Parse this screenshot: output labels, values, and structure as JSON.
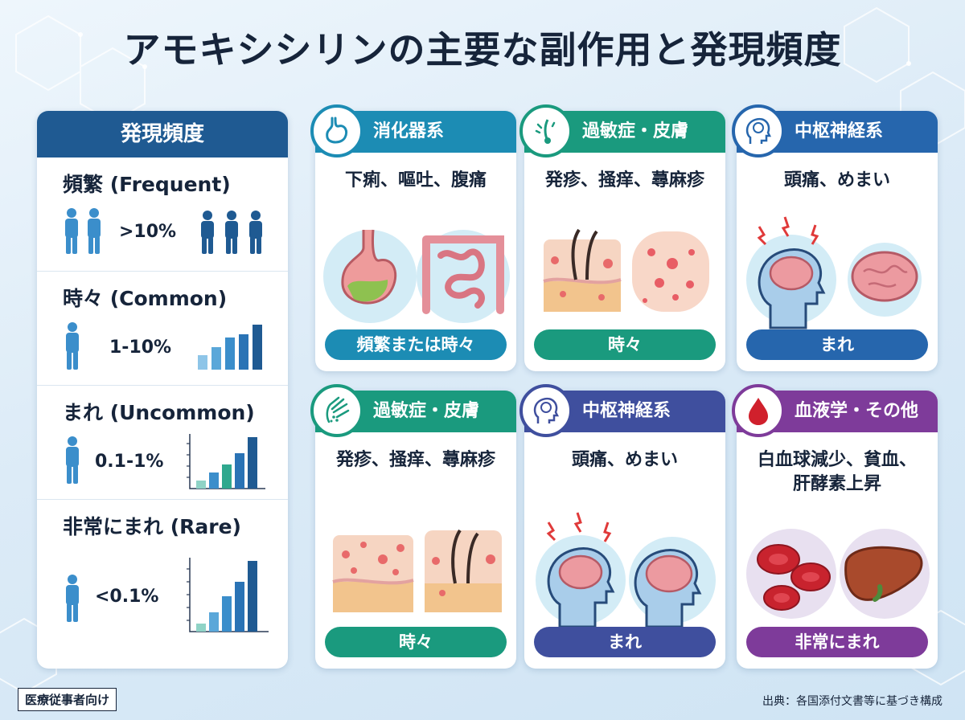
{
  "title": "アモキシシリンの主要な副作用と発現頻度",
  "frequency_panel": {
    "header": "発現頻度",
    "rows": [
      {
        "label": "頻繁 (Frequent)",
        "value": ">10%"
      },
      {
        "label": "時々 (Common)",
        "value": "1-10%"
      },
      {
        "label": "まれ (Uncommon)",
        "value": "0.1-1%"
      },
      {
        "label": "非常にまれ (Rare)",
        "value": "<0.1%"
      }
    ]
  },
  "cards": [
    {
      "category": "消化器系",
      "symptoms": "下痢、嘔吐、腹痛",
      "frequency": "頻繁または時々",
      "icon": "stomach-icon",
      "color": "#1c8cb4"
    },
    {
      "category": "過敏症・皮膚",
      "symptoms": "発疹、掻痒、蕁麻疹",
      "frequency": "時々",
      "icon": "skin-icon",
      "color": "#1a9a7e"
    },
    {
      "category": "中枢神経系",
      "symptoms": "頭痛、めまい",
      "frequency": "まれ",
      "icon": "head-brain-icon",
      "color": "#2666ad"
    },
    {
      "category": "過敏症・皮膚",
      "symptoms": "発疹、掻痒、蕁麻疹",
      "frequency": "時々",
      "icon": "hand-rash-icon",
      "color": "#1a9a7e"
    },
    {
      "category": "中枢神経系",
      "symptoms": "頭痛、めまい",
      "frequency": "まれ",
      "icon": "head-brain-icon",
      "color": "#3f4f9e"
    },
    {
      "category": "血液学・その他",
      "symptoms": "白血球減少、貧血、肝酵素上昇",
      "symptoms_line1": "白血球減少、貧血、",
      "symptoms_line2": "肝酵素上昇",
      "frequency": "非常にまれ",
      "icon": "blood-drop-icon",
      "color": "#7e3b9a"
    }
  ],
  "footer": {
    "badge": "医療従事者向け",
    "source": "出典：各国添付文書等に基づき構成"
  }
}
